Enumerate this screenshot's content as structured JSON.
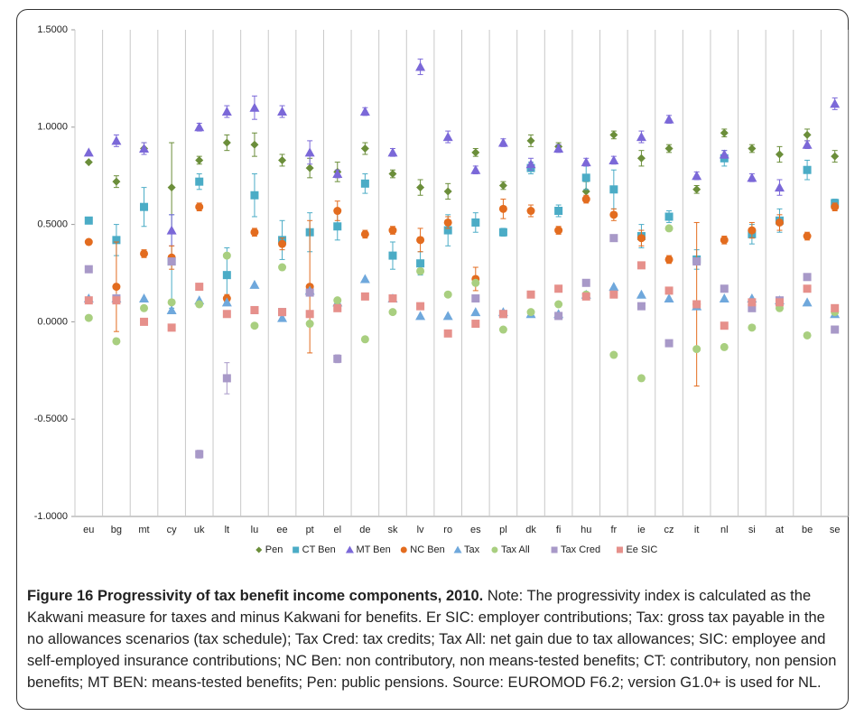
{
  "chart_data": {
    "type": "scatter",
    "categories": [
      "eu",
      "bg",
      "mt",
      "cy",
      "uk",
      "lt",
      "lu",
      "ee",
      "pt",
      "el",
      "de",
      "sk",
      "lv",
      "ro",
      "es",
      "pl",
      "dk",
      "fi",
      "hu",
      "fr",
      "ie",
      "cz",
      "it",
      "nl",
      "si",
      "at",
      "be",
      "se"
    ],
    "ylim": [
      -1.0,
      1.5
    ],
    "yticks": [
      {
        "value": -1.0,
        "label": "-1.0000"
      },
      {
        "value": -0.5,
        "label": "-0.5000"
      },
      {
        "value": 0.0,
        "label": "0.0000"
      },
      {
        "value": 0.5,
        "label": "0.5000"
      },
      {
        "value": 1.0,
        "label": "1.0000"
      },
      {
        "value": 1.5,
        "label": "1.5000"
      }
    ],
    "grid": "vertical",
    "legend": "bottom",
    "series": [
      {
        "name": "Pen",
        "color": "#6b8e3a",
        "marker": "diamond",
        "values": [
          0.82,
          0.72,
          0.89,
          0.69,
          0.83,
          0.92,
          0.91,
          0.83,
          0.79,
          0.77,
          0.89,
          0.76,
          0.69,
          0.67,
          0.87,
          0.7,
          0.93,
          0.9,
          0.67,
          0.96,
          0.84,
          0.89,
          0.68,
          0.97,
          0.89,
          0.86,
          0.96,
          0.85
        ],
        "errors": [
          null,
          0.03,
          0.03,
          0.23,
          0.02,
          0.04,
          0.06,
          0.03,
          0.05,
          0.05,
          0.03,
          0.02,
          0.04,
          0.04,
          0.02,
          0.02,
          0.03,
          0.02,
          0.05,
          0.02,
          0.04,
          0.02,
          0.02,
          0.02,
          0.02,
          0.04,
          0.03,
          0.03
        ]
      },
      {
        "name": "CT Ben",
        "color": "#4bacc6",
        "marker": "square",
        "values": [
          0.52,
          0.42,
          0.59,
          0.31,
          0.72,
          0.24,
          0.65,
          0.42,
          0.46,
          0.49,
          0.71,
          0.34,
          0.3,
          0.47,
          0.51,
          0.46,
          0.79,
          0.57,
          0.74,
          0.68,
          0.44,
          0.54,
          0.32,
          0.84,
          0.45,
          0.52,
          0.78,
          0.61
        ],
        "errors": [
          null,
          0.08,
          0.1,
          0.24,
          0.04,
          0.14,
          0.11,
          0.1,
          0.1,
          0.07,
          0.05,
          0.07,
          0.06,
          0.08,
          0.05,
          0.02,
          0.03,
          0.03,
          0.06,
          0.1,
          0.06,
          0.03,
          0.05,
          0.04,
          0.05,
          0.06,
          0.05,
          0.02
        ]
      },
      {
        "name": "MT Ben",
        "color": "#7b68d8",
        "marker": "triangle",
        "values": [
          0.87,
          0.93,
          0.89,
          0.47,
          1.0,
          1.08,
          1.1,
          1.08,
          0.87,
          0.76,
          1.08,
          0.87,
          1.31,
          0.95,
          0.78,
          0.92,
          0.81,
          0.89,
          0.82,
          0.83,
          0.95,
          1.04,
          0.75,
          0.86,
          0.74,
          0.69,
          0.91,
          1.12
        ],
        "errors": [
          null,
          0.03,
          0.03,
          0.08,
          0.02,
          0.03,
          0.06,
          0.03,
          0.06,
          0.02,
          0.02,
          0.02,
          0.04,
          0.03,
          0.02,
          0.02,
          0.03,
          0.02,
          0.02,
          0.02,
          0.03,
          0.02,
          0.02,
          0.02,
          0.02,
          0.04,
          0.02,
          0.03
        ]
      },
      {
        "name": "NC Ben",
        "color": "#e36c1f",
        "marker": "circle",
        "values": [
          0.41,
          0.18,
          0.35,
          0.33,
          0.59,
          0.12,
          0.46,
          0.4,
          0.18,
          0.57,
          0.45,
          0.47,
          0.42,
          0.51,
          0.22,
          0.58,
          0.57,
          0.47,
          0.63,
          0.55,
          0.43,
          0.32,
          0.09,
          0.42,
          0.47,
          0.51,
          0.44,
          0.59
        ],
        "errors": [
          null,
          0.23,
          0.02,
          0.06,
          0.02,
          0.02,
          0.02,
          0.03,
          0.34,
          0.05,
          0.02,
          0.02,
          0.06,
          0.03,
          0.06,
          0.05,
          0.03,
          0.02,
          0.02,
          0.03,
          0.04,
          0.02,
          0.42,
          0.02,
          0.04,
          0.04,
          0.02,
          0.02
        ]
      },
      {
        "name": "Tax",
        "color": "#6fa8dc",
        "marker": "triangle",
        "values": [
          0.12,
          0.12,
          0.12,
          0.06,
          0.11,
          0.1,
          0.19,
          0.02,
          0.16,
          0.1,
          0.22,
          0.12,
          0.03,
          0.03,
          0.05,
          0.05,
          0.04,
          0.04,
          0.14,
          0.18,
          0.14,
          0.12,
          0.08,
          0.12,
          0.12,
          0.11,
          0.1,
          0.04
        ]
      },
      {
        "name": "Tax All",
        "color": "#a9cf80",
        "marker": "circle",
        "values": [
          0.02,
          -0.1,
          0.07,
          0.1,
          0.09,
          0.34,
          -0.02,
          0.28,
          -0.01,
          0.11,
          -0.09,
          0.05,
          0.26,
          0.14,
          0.2,
          -0.04,
          0.05,
          0.09,
          0.14,
          -0.17,
          -0.29,
          0.48,
          -0.14,
          -0.13,
          -0.03,
          0.07,
          -0.07,
          0.05
        ]
      },
      {
        "name": "Tax Cred",
        "color": "#a899c8",
        "marker": "square",
        "values": [
          0.27,
          0.12,
          null,
          0.31,
          -0.68,
          -0.29,
          0.06,
          0.05,
          0.15,
          -0.19,
          null,
          null,
          null,
          null,
          0.12,
          0.04,
          null,
          0.03,
          0.2,
          0.43,
          0.08,
          -0.11,
          0.31,
          0.17,
          0.07,
          0.11,
          0.23,
          -0.04
        ],
        "errors": [
          null,
          null,
          null,
          null,
          0.02,
          0.08,
          null,
          null,
          null,
          0.02,
          null,
          null,
          null,
          null,
          null,
          null,
          null,
          null,
          null,
          null,
          null,
          null,
          null,
          null,
          null,
          null,
          null,
          null
        ]
      },
      {
        "name": "Ee SIC",
        "color": "#e6908b",
        "marker": "square",
        "values": [
          0.11,
          0.11,
          0.0,
          -0.03,
          0.18,
          0.04,
          0.06,
          0.05,
          0.04,
          0.07,
          0.13,
          0.12,
          0.08,
          -0.06,
          -0.01,
          0.04,
          0.14,
          0.17,
          0.13,
          0.14,
          0.29,
          0.16,
          0.09,
          -0.02,
          0.1,
          0.1,
          0.17,
          0.07
        ]
      }
    ]
  },
  "caption": {
    "title": "Figure 16 Progressivity of tax benefit income components, 2010.",
    "note": "Note: The progressivity index is calculated as the Kakwani measure for taxes and minus Kakwani for benefits. Er SIC: employer contributions; Tax: gross tax payable in the no allowances scenarios (tax schedule); Tax Cred: tax credits; Tax All: net gain due to tax allowances; SIC: employee and self-employed insurance contributions; NC Ben: non contributory, non means-tested benefits; CT: contributory, non pension benefits; MT BEN: means-tested benefits; Pen: public pensions. Source: EUROMOD F6.2; version G1.0+ is used for NL."
  }
}
